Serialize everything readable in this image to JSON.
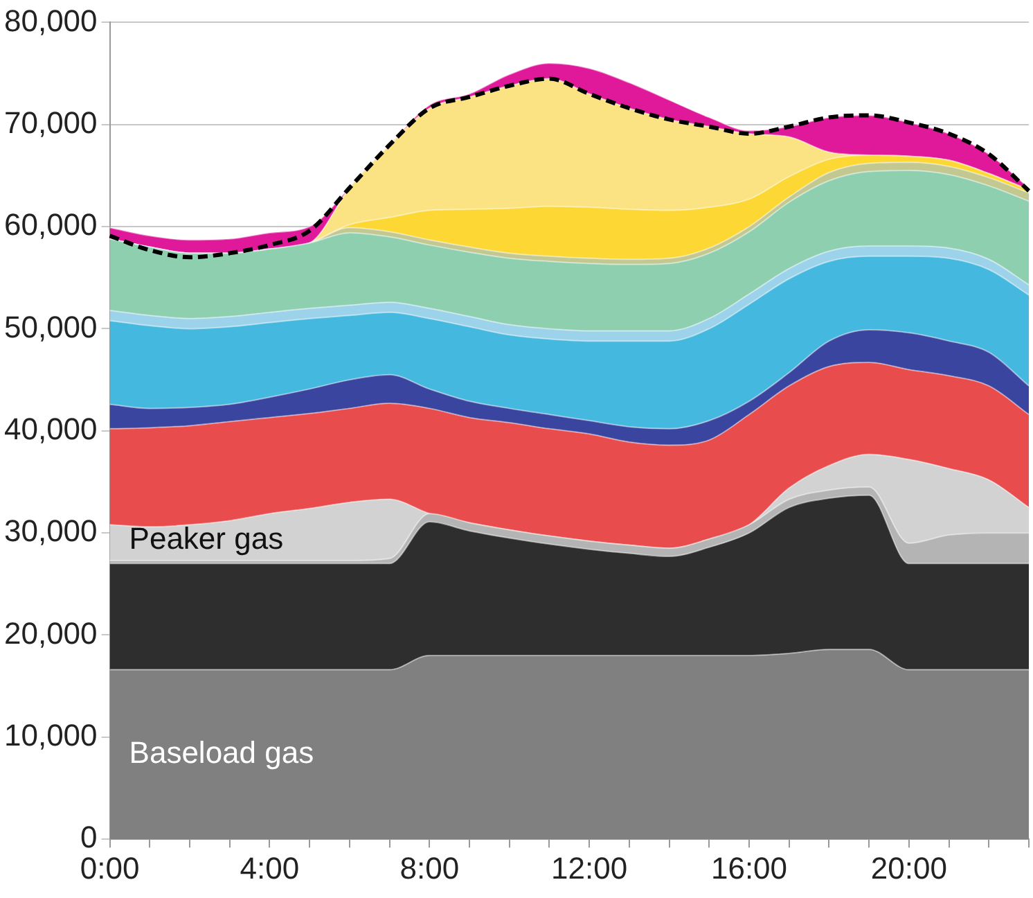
{
  "chart_data": {
    "type": "area",
    "stacked": true,
    "grid": "y",
    "marker": "none",
    "categories": [
      "0:00",
      null,
      null,
      null,
      "4:00",
      null,
      null,
      null,
      "8:00",
      null,
      null,
      null,
      "12:00",
      null,
      null,
      null,
      "16:00",
      null,
      null,
      null,
      "20:00",
      null,
      null,
      null
    ],
    "ylim": [
      0,
      80000
    ],
    "yticks": [
      {
        "value": 0,
        "label": "0"
      },
      {
        "value": 10000,
        "label": "10,000"
      },
      {
        "value": 20000,
        "label": "20,000"
      },
      {
        "value": 30000,
        "label": "30,000"
      },
      {
        "value": 40000,
        "label": "40,000"
      },
      {
        "value": 50000,
        "label": "50,000"
      },
      {
        "value": 60000,
        "label": "60,000"
      },
      {
        "value": 70000,
        "label": "70,000"
      },
      {
        "value": 80000,
        "label": "80,000"
      }
    ],
    "series": [
      {
        "name": "Baseload gas",
        "color": "#808080",
        "values": [
          16600,
          16600,
          16600,
          16600,
          16600,
          16600,
          16600,
          16600,
          18000,
          18000,
          18000,
          18000,
          18000,
          18000,
          18000,
          18000,
          18000,
          18200,
          18600,
          18600,
          16600,
          16600,
          16600,
          16600
        ]
      },
      {
        "color": "#2e2e2e",
        "values": [
          10400,
          10400,
          10400,
          10400,
          10400,
          10400,
          10400,
          10400,
          13100,
          12200,
          11500,
          10900,
          10400,
          10000,
          9700,
          10600,
          12000,
          14300,
          14800,
          15100,
          10400,
          10400,
          10400,
          10400
        ]
      },
      {
        "color": "#b4b4b4",
        "values": [
          300,
          300,
          300,
          300,
          300,
          300,
          300,
          500,
          800,
          800,
          800,
          800,
          800,
          800,
          800,
          800,
          800,
          800,
          800,
          800,
          2000,
          2800,
          3000,
          3000
        ]
      },
      {
        "name": "Peaker gas",
        "color": "#d2d2d2",
        "values": [
          3500,
          3300,
          3500,
          3900,
          4600,
          5100,
          5700,
          5800,
          0,
          0,
          0,
          0,
          0,
          0,
          0,
          0,
          0,
          1100,
          2400,
          3200,
          8200,
          6500,
          5200,
          2500
        ]
      },
      {
        "color": "#e84c4c",
        "values": [
          9400,
          9700,
          9700,
          9700,
          9400,
          9300,
          9200,
          9400,
          10300,
          10300,
          10500,
          10500,
          10500,
          10100,
          10100,
          9700,
          10800,
          10000,
          9700,
          9000,
          8800,
          9100,
          9200,
          9100
        ]
      },
      {
        "color": "#3a45a0",
        "values": [
          2400,
          1900,
          1800,
          1700,
          2000,
          2400,
          2800,
          2800,
          1900,
          1600,
          1400,
          1400,
          1300,
          1500,
          1600,
          1900,
          1300,
          1300,
          2500,
          3200,
          3600,
          3400,
          3300,
          2800
        ]
      },
      {
        "color": "#45b8e0",
        "values": [
          8200,
          8100,
          7700,
          7600,
          7300,
          6900,
          6300,
          6100,
          6900,
          7300,
          7200,
          7400,
          7800,
          8400,
          8600,
          9000,
          9500,
          9200,
          7800,
          7200,
          7500,
          8100,
          8100,
          8900
        ]
      },
      {
        "color": "#9dd3ea",
        "values": [
          1000,
          1000,
          1000,
          1000,
          1000,
          1000,
          1000,
          1000,
          1000,
          1000,
          1000,
          1000,
          1000,
          1000,
          1000,
          1000,
          1000,
          1000,
          1000,
          1000,
          1000,
          1000,
          1000,
          1000
        ]
      },
      {
        "color": "#8ecfb0",
        "values": [
          7000,
          6700,
          6400,
          6200,
          6200,
          6400,
          7100,
          6400,
          6200,
          6300,
          6500,
          6600,
          6600,
          6500,
          6600,
          6400,
          6100,
          6500,
          6900,
          7300,
          7400,
          7200,
          7200,
          8200
        ]
      },
      {
        "color": "#c2c890",
        "values": [
          0,
          0,
          0,
          0,
          0,
          0,
          500,
          500,
          500,
          500,
          500,
          500,
          500,
          500,
          500,
          500,
          500,
          500,
          800,
          800,
          800,
          800,
          800,
          800
        ]
      },
      {
        "color": "#fdd835",
        "values": [
          0,
          0,
          0,
          0,
          0,
          0,
          300,
          1400,
          2900,
          3700,
          4400,
          4900,
          5000,
          4900,
          4700,
          4000,
          2700,
          2000,
          1300,
          800,
          600,
          600,
          400,
          300
        ]
      },
      {
        "color": "#fbe384",
        "values": [
          0,
          0,
          0,
          0,
          0,
          0,
          3600,
          7100,
          10000,
          11000,
          12000,
          12500,
          11100,
          9900,
          8900,
          7900,
          6400,
          3900,
          700,
          0,
          0,
          0,
          0,
          0
        ]
      },
      {
        "color": "#e0189a",
        "values": [
          1100,
          1100,
          1300,
          1400,
          1600,
          1600,
          0,
          0,
          300,
          300,
          1100,
          1500,
          2500,
          2500,
          1900,
          900,
          300,
          1000,
          3400,
          3900,
          3300,
          2600,
          1900,
          200
        ]
      },
      {
        "type": "line",
        "line_style": "dashed",
        "color": "#000000",
        "values": [
          59100,
          57700,
          57000,
          57400,
          58200,
          59600,
          63800,
          68000,
          71600,
          72700,
          73800,
          74500,
          73000,
          71600,
          70500,
          69800,
          69100,
          69800,
          70700,
          70900,
          70200,
          69100,
          67100,
          63500
        ]
      }
    ]
  }
}
